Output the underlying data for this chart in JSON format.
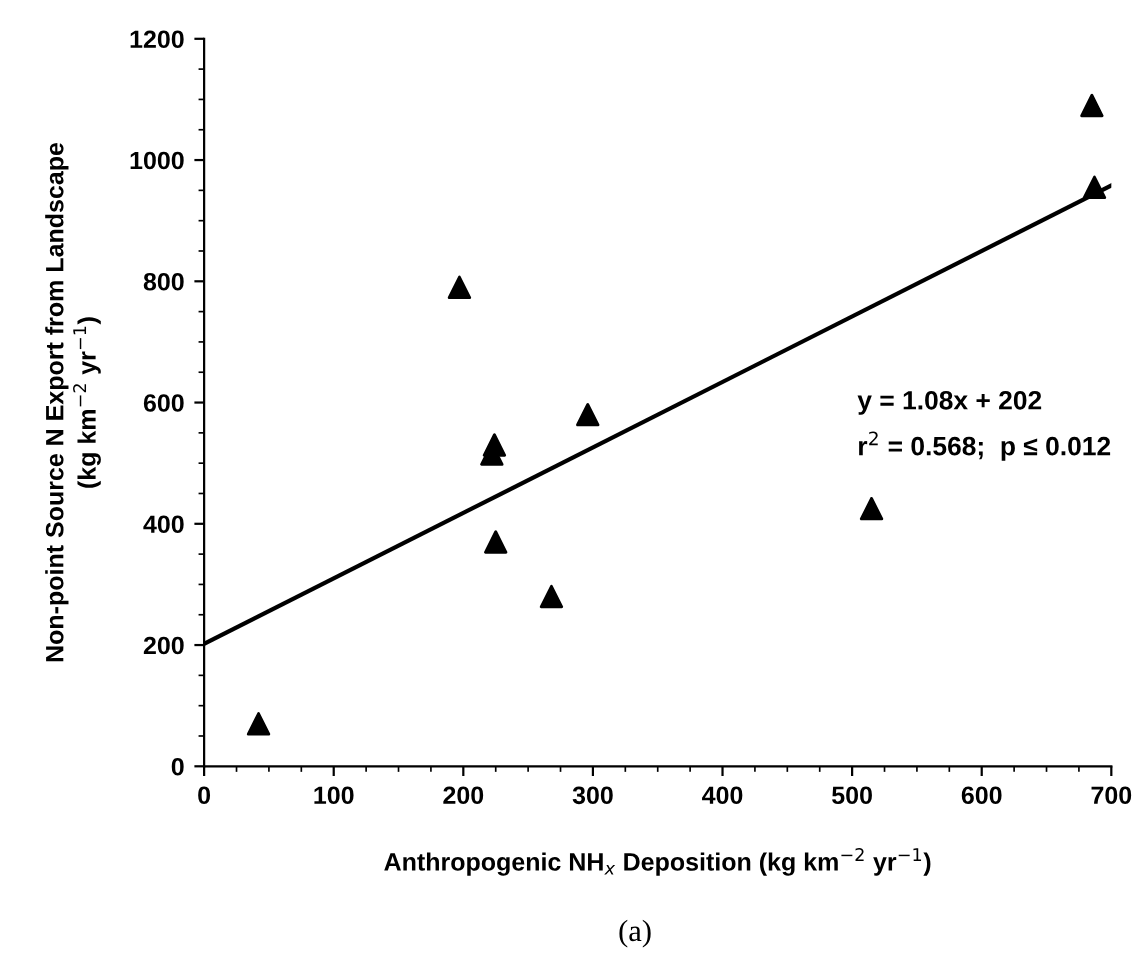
{
  "chart_data": {
    "type": "scatter",
    "xlabel": "Anthropogenic NH$_{x}$ Deposition (kg km$^{−2}$ yr$^{−1}$)",
    "ylabel": "Non-point Source N Export from Landscape\n(kg km$^{−2}$ yr$^{−1}$)",
    "series": [
      {
        "color": "#000000",
        "marker": "triangle",
        "x": [
          42,
          197,
          222,
          224,
          225,
          268,
          296,
          515,
          685,
          687
        ],
        "values": [
          70,
          790,
          515,
          530,
          370,
          280,
          580,
          425,
          1090,
          955
        ]
      },
      {
        "type": "line",
        "color": "#000000",
        "marker": "none",
        "line_style": "solid",
        "x": [
          0,
          700
        ],
        "values": [
          202,
          958
        ]
      }
    ],
    "annotations": [
      "y = 1.08x + 202",
      "r$^{2}$ = 0.568;  p ≤ 0.012",
      "(a)"
    ],
    "xlim": [
      0,
      700
    ],
    "ylim": [
      0,
      1200
    ],
    "xticks": [
      0,
      100,
      200,
      300,
      400,
      500,
      600,
      700
    ],
    "yticks": [
      0,
      200,
      400,
      600,
      800,
      1000,
      1200
    ],
    "grid": false,
    "legend": false
  }
}
